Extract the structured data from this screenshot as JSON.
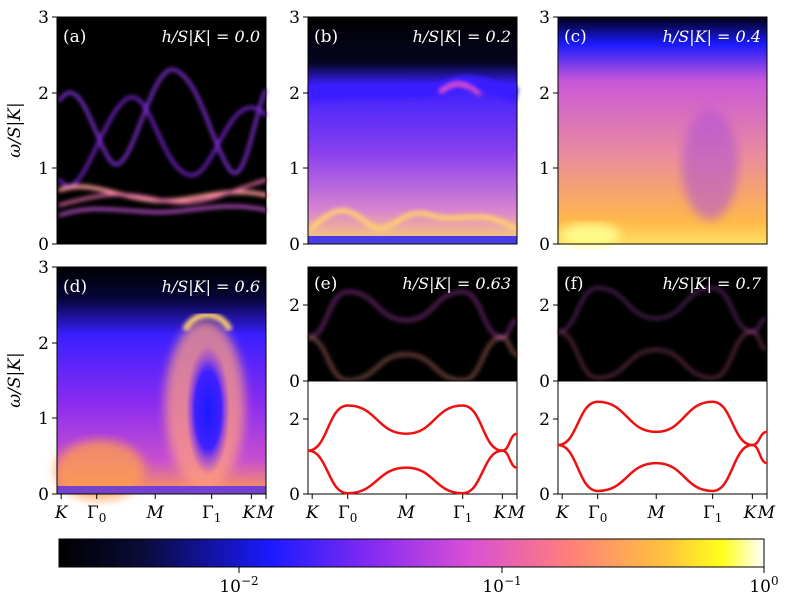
{
  "colors": {
    "spectral_bg": "#000000",
    "curve": "#ee1111",
    "axis": "#000000"
  },
  "ylabel": "ω/S|K|",
  "x_tick_labels": [
    "K",
    "Γ0",
    "M",
    "Γ1",
    "K",
    "M"
  ],
  "colorbar": {
    "labels": [
      "10^-2",
      "10^-1",
      "10^0"
    ],
    "scale": "log",
    "range": [
      0.002,
      1.0
    ],
    "colormap": "plasma-like (black→blue→magenta→orange→yellow→white)"
  },
  "panels": [
    {
      "tag": "(a)",
      "label": "h/S|K| = 0.0",
      "ylim": [
        0,
        3
      ],
      "yticks": [
        "0",
        "1",
        "2",
        "3"
      ]
    },
    {
      "tag": "(b)",
      "label": "h/S|K| = 0.2",
      "ylim": [
        0,
        3
      ],
      "yticks": [
        "0",
        "1",
        "2",
        "3"
      ]
    },
    {
      "tag": "(c)",
      "label": "h/S|K| = 0.4",
      "ylim": [
        0,
        3
      ],
      "yticks": [
        "0",
        "1",
        "2",
        "3"
      ]
    },
    {
      "tag": "(d)",
      "label": "h/S|K| = 0.6",
      "ylim": [
        0,
        3
      ],
      "yticks": [
        "0",
        "1",
        "2",
        "3"
      ]
    },
    {
      "tag": "(e)",
      "label": "h/S|K| = 0.63",
      "ylim": [
        0,
        3
      ],
      "yticks": [
        "0",
        "2"
      ]
    },
    {
      "tag": "(f)",
      "label": "h/S|K| = 0.7",
      "ylim": [
        0,
        3
      ],
      "yticks": [
        "0",
        "2"
      ]
    }
  ],
  "chart_data": [
    {
      "type": "line",
      "panel": "(e) lower",
      "x_positions": [
        "K",
        "Γ0",
        "M",
        "Γ1",
        "K",
        "M"
      ],
      "series": [
        {
          "x": [
            "K",
            "Γ0",
            "M",
            "Γ1",
            "K",
            "M"
          ],
          "y": [
            1.15,
            2.35,
            1.6,
            2.35,
            1.15,
            1.6
          ]
        },
        {
          "x": [
            "K",
            "Γ0",
            "M",
            "Γ1",
            "K",
            "M"
          ],
          "y": [
            1.15,
            0.02,
            0.7,
            0.02,
            1.15,
            0.7
          ]
        }
      ],
      "ylim": [
        0,
        3
      ]
    },
    {
      "type": "line",
      "panel": "(f) lower",
      "x_positions": [
        "K",
        "Γ0",
        "M",
        "Γ1",
        "K",
        "M"
      ],
      "series": [
        {
          "x": [
            "K",
            "Γ0",
            "M",
            "Γ1",
            "K",
            "M"
          ],
          "y": [
            1.3,
            2.45,
            1.65,
            2.45,
            1.3,
            1.65
          ]
        },
        {
          "x": [
            "K",
            "Γ0",
            "M",
            "Γ1",
            "K",
            "M"
          ],
          "y": [
            1.3,
            0.08,
            0.82,
            0.08,
            1.3,
            0.82
          ]
        }
      ],
      "ylim": [
        0,
        3
      ]
    }
  ]
}
